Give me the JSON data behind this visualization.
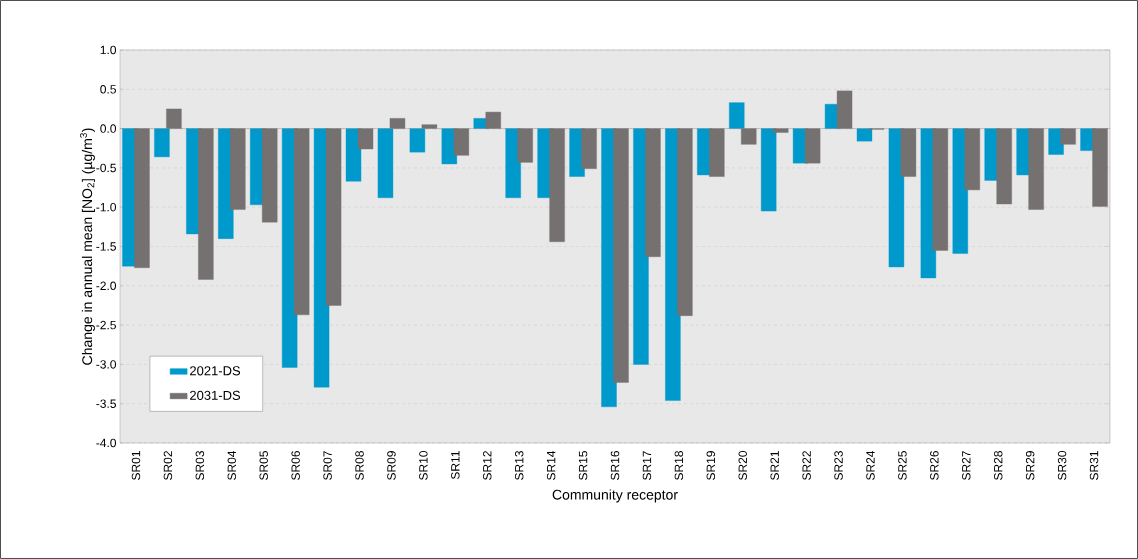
{
  "chart_data": {
    "type": "bar",
    "xlabel": "Community receptor",
    "ylabel": "Change in annual mean [NO$_{2}$] (µg/m$^{3}$)",
    "categories": [
      "SR01",
      "SR02",
      "SR03",
      "SR04",
      "SR05",
      "SR06",
      "SR07",
      "SR08",
      "SR09",
      "SR10",
      "SR11",
      "SR12",
      "SR13",
      "SR14",
      "SR15",
      "SR16",
      "SR17",
      "SR18",
      "SR19",
      "SR20",
      "SR21",
      "SR22",
      "SR23",
      "SR24",
      "SR25",
      "SR26",
      "SR27",
      "SR28",
      "SR29",
      "SR30",
      "SR31"
    ],
    "series": [
      {
        "name": "2021-DS",
        "color": "#0099cc",
        "values": [
          -1.75,
          -0.36,
          -1.34,
          -1.4,
          -0.97,
          -3.04,
          -3.29,
          -0.67,
          -0.88,
          -0.3,
          -0.45,
          0.13,
          -0.88,
          -0.88,
          -0.61,
          -3.54,
          -3.0,
          -3.46,
          -0.59,
          0.33,
          -1.05,
          -0.44,
          0.31,
          -0.16,
          -1.76,
          -1.9,
          -1.59,
          -0.66,
          -0.59,
          -0.33,
          -0.28
        ]
      },
      {
        "name": "2031-DS",
        "color": "#767171",
        "values": [
          -1.77,
          0.25,
          -1.92,
          -1.03,
          -1.19,
          -2.37,
          -2.25,
          -0.26,
          0.13,
          0.05,
          -0.34,
          0.21,
          -0.43,
          -1.44,
          -0.51,
          -3.23,
          -1.63,
          -2.38,
          -0.61,
          -0.2,
          -0.05,
          -0.44,
          0.48,
          -0.01,
          -0.61,
          -1.55,
          -0.78,
          -0.96,
          -1.03,
          -0.2,
          -0.99
        ]
      }
    ],
    "ylim": [
      -4,
      1
    ],
    "yticks": [
      {
        "value": -4,
        "label": "-4.0"
      },
      {
        "value": -3.5,
        "label": "-3.5"
      },
      {
        "value": -3,
        "label": "-3.0"
      },
      {
        "value": -2.5,
        "label": "-2.5"
      },
      {
        "value": -2,
        "label": "-2.0"
      },
      {
        "value": -1.5,
        "label": "-1.5"
      },
      {
        "value": -1,
        "label": "-1.0"
      },
      {
        "value": -0.5,
        "label": "-0.5"
      },
      {
        "value": 0,
        "label": "0.0"
      },
      {
        "value": 0.5,
        "label": "0.5"
      },
      {
        "value": 1,
        "label": "1.0"
      }
    ],
    "grid": "y",
    "legend": "bottom left"
  }
}
